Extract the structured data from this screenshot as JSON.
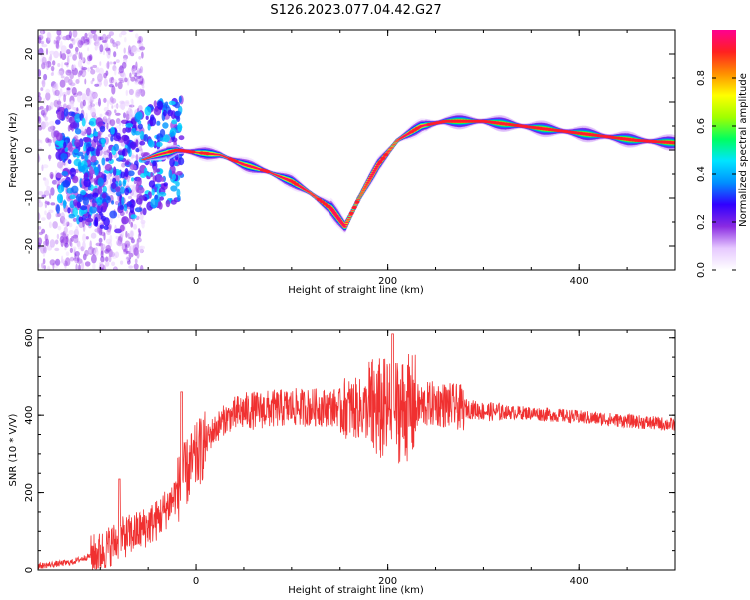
{
  "title": "S126.2023.077.04.42.G27",
  "colors": {
    "snr_line": "#f03030",
    "colormap": [
      "#ffffff",
      "#e6c8ff",
      "#8a2be2",
      "#3000ff",
      "#0090ff",
      "#00e5ff",
      "#00ff60",
      "#a0ff00",
      "#ffff00",
      "#ff9000",
      "#ff2020",
      "#ff0090"
    ]
  },
  "chart_data": [
    {
      "type": "heatmap",
      "xlabel": "Height of straight line (km)",
      "ylabel": "Frequency (Hz)",
      "xlim": [
        -165,
        500
      ],
      "ylim": [
        -25,
        25
      ],
      "xticks": [
        0,
        200,
        400
      ],
      "yticks": [
        -20,
        -10,
        0,
        10,
        20
      ],
      "colorbar": {
        "label": "Normalized spectral amplitude",
        "range": [
          0,
          1
        ],
        "ticks": [
          0.0,
          0.2,
          0.4,
          0.6,
          0.8
        ]
      },
      "ridge": [
        {
          "x": -160,
          "y": 0
        },
        {
          "x": -120,
          "y": -4
        },
        {
          "x": -80,
          "y": -6
        },
        {
          "x": -55,
          "y": -2
        },
        {
          "x": -40,
          "y": -1
        },
        {
          "x": -20,
          "y": 0
        },
        {
          "x": 0,
          "y": -0.5
        },
        {
          "x": 25,
          "y": -1
        },
        {
          "x": 50,
          "y": -3
        },
        {
          "x": 75,
          "y": -4.5
        },
        {
          "x": 100,
          "y": -6.5
        },
        {
          "x": 120,
          "y": -9
        },
        {
          "x": 140,
          "y": -12
        },
        {
          "x": 155,
          "y": -16
        },
        {
          "x": 170,
          "y": -10
        },
        {
          "x": 190,
          "y": -3
        },
        {
          "x": 210,
          "y": 2
        },
        {
          "x": 235,
          "y": 5
        },
        {
          "x": 260,
          "y": 6
        },
        {
          "x": 300,
          "y": 6
        },
        {
          "x": 340,
          "y": 5
        },
        {
          "x": 380,
          "y": 4
        },
        {
          "x": 420,
          "y": 3
        },
        {
          "x": 460,
          "y": 2
        },
        {
          "x": 500,
          "y": 1.5
        }
      ]
    },
    {
      "type": "line",
      "xlabel": "Height of straight line (km)",
      "ylabel": "SNR (10 * V/V)",
      "xlim": [
        -165,
        500
      ],
      "ylim": [
        0,
        620
      ],
      "xticks": [
        0,
        200,
        400
      ],
      "yticks": [
        0,
        200,
        400,
        600
      ],
      "series": [
        {
          "trend": [
            {
              "x": -165,
              "y": 10
            },
            {
              "x": -130,
              "y": 20
            },
            {
              "x": -100,
              "y": 45
            },
            {
              "x": -80,
              "y": 80
            },
            {
              "x": -60,
              "y": 100
            },
            {
              "x": -40,
              "y": 130
            },
            {
              "x": -25,
              "y": 180
            },
            {
              "x": -10,
              "y": 250
            },
            {
              "x": 0,
              "y": 290
            },
            {
              "x": 15,
              "y": 350
            },
            {
              "x": 30,
              "y": 390
            },
            {
              "x": 50,
              "y": 410
            },
            {
              "x": 100,
              "y": 420
            },
            {
              "x": 150,
              "y": 420
            },
            {
              "x": 200,
              "y": 410
            },
            {
              "x": 250,
              "y": 430
            },
            {
              "x": 300,
              "y": 410
            },
            {
              "x": 350,
              "y": 405
            },
            {
              "x": 400,
              "y": 395
            },
            {
              "x": 450,
              "y": 385
            },
            {
              "x": 500,
              "y": 375
            }
          ],
          "peaks": [
            {
              "x": -80,
              "y": 235
            },
            {
              "x": -15,
              "y": 460
            },
            {
              "x": 205,
              "y": 610
            }
          ]
        }
      ]
    }
  ]
}
